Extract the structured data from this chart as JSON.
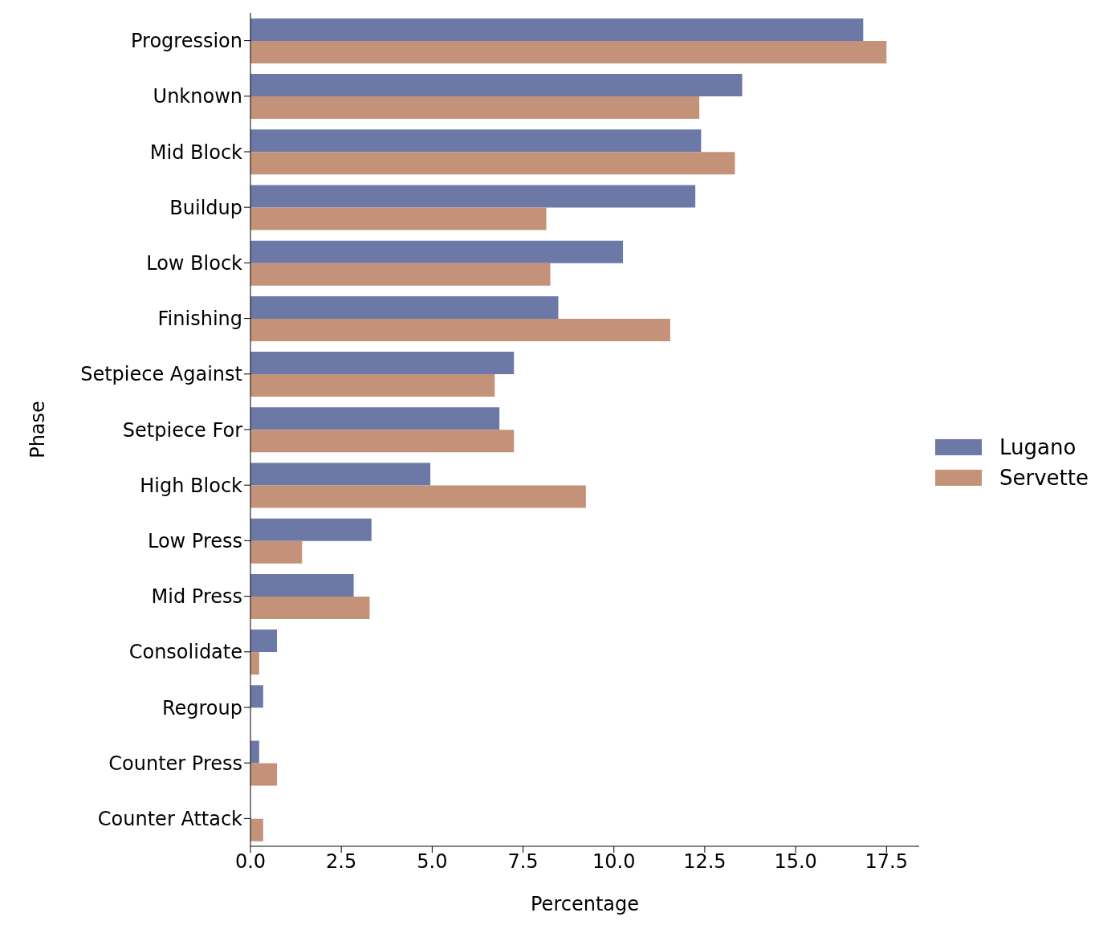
{
  "chart_data": {
    "type": "bar",
    "orientation": "horizontal",
    "xlabel": "Percentage",
    "ylabel": "Phase",
    "categories": [
      "Progression",
      "Unknown",
      "Mid Block",
      "Buildup",
      "Low Block",
      "Finishing",
      "Setpiece Against",
      "Setpiece For",
      "High Block",
      "Low Press",
      "Mid Press",
      "Consolidate",
      "Regroup",
      "Counter Press",
      "Counter Attack"
    ],
    "series": [
      {
        "name": "Lugano",
        "color": "#6c78a6",
        "values": [
          16.86,
          13.53,
          12.4,
          12.24,
          10.25,
          8.47,
          7.25,
          6.85,
          4.95,
          3.33,
          2.84,
          0.73,
          0.35,
          0.24,
          null
        ]
      },
      {
        "name": "Servette",
        "color": "#c49278",
        "values": [
          17.5,
          12.35,
          13.33,
          8.14,
          8.25,
          11.55,
          6.72,
          7.25,
          9.23,
          1.42,
          3.28,
          0.24,
          null,
          0.73,
          0.35
        ]
      }
    ],
    "xlim": [
      0,
      18.4
    ],
    "xticks": [
      {
        "value": 0,
        "label": "0.0"
      },
      {
        "value": 2.5,
        "label": "2.5"
      },
      {
        "value": 5,
        "label": "5.0"
      },
      {
        "value": 7.5,
        "label": "7.5"
      },
      {
        "value": 10,
        "label": "10.0"
      },
      {
        "value": 12.5,
        "label": "12.5"
      },
      {
        "value": 15,
        "label": "15.0"
      },
      {
        "value": 17.5,
        "label": "17.5"
      }
    ],
    "legend": "right",
    "grid": false
  }
}
